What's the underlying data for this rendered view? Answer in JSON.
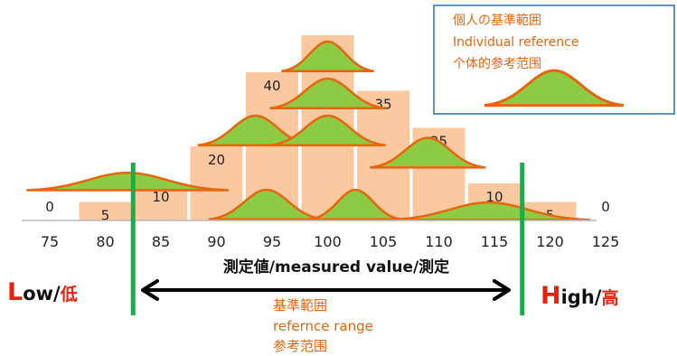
{
  "chart_data": {
    "type": "bar",
    "title": "",
    "categories": [
      "75",
      "80",
      "85",
      "90",
      "95",
      "100",
      "105",
      "110",
      "115",
      "120",
      "125"
    ],
    "values": [
      0,
      5,
      10,
      20,
      40,
      50,
      35,
      25,
      10,
      5,
      0
    ],
    "xlabel": "測定値/measured value/測定",
    "ylabel": "",
    "bar_color": "#fcc8a0",
    "curve_fill": "#8dcb45",
    "curve_stroke": "#e8650a",
    "reference_line_color": "#12b04a",
    "individual_curves": [
      {
        "center": 82,
        "width": 3.5,
        "level": 8
      },
      {
        "center": 93.5,
        "width": 2.0,
        "level": 20
      },
      {
        "center": 94.5,
        "width": 2.0,
        "level": 0
      },
      {
        "center": 100,
        "width": 1.6,
        "level": 40
      },
      {
        "center": 100,
        "width": 2.0,
        "level": 30
      },
      {
        "center": 100,
        "width": 2.0,
        "level": 20
      },
      {
        "center": 102.5,
        "width": 1.6,
        "level": 0
      },
      {
        "center": 109,
        "width": 2.0,
        "level": 14
      },
      {
        "center": 114.5,
        "width": 3.5,
        "level": 0
      }
    ],
    "reference_range": {
      "low": 82.5,
      "high": 117.5
    }
  },
  "legend": {
    "line1": "個人の基準範囲",
    "line2": "Individual reference",
    "line3": "个体的参考范围"
  },
  "range_labels": {
    "low_letter": "L",
    "low_rest": "ow/",
    "low_cjk": "低",
    "high_letter": "H",
    "high_rest": "igh/",
    "high_cjk": "高",
    "ref_line1": "基準範囲",
    "ref_line2": "refernce range",
    "ref_line3": "参考范围"
  }
}
